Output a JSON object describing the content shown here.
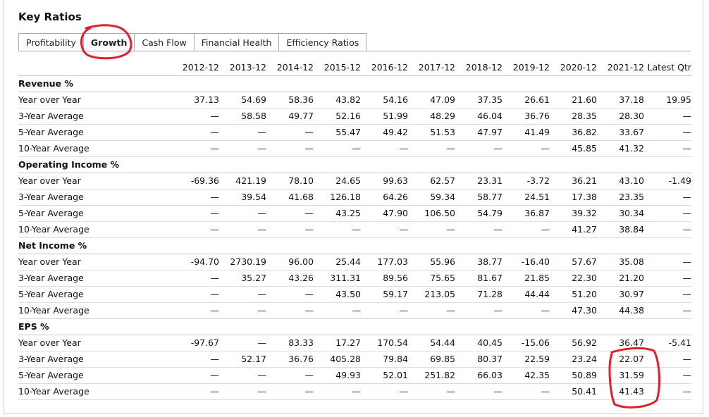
{
  "title": "Key Ratios",
  "tabs": [
    {
      "label": "Profitability",
      "active": false
    },
    {
      "label": "Growth",
      "active": true
    },
    {
      "label": "Cash Flow",
      "active": false
    },
    {
      "label": "Financial Health",
      "active": false
    },
    {
      "label": "Efficiency Ratios",
      "active": false
    }
  ],
  "columns": [
    "2012-12",
    "2013-12",
    "2014-12",
    "2015-12",
    "2016-12",
    "2017-12",
    "2018-12",
    "2019-12",
    "2020-12",
    "2021-12",
    "Latest Qtr"
  ],
  "sections": [
    {
      "name": "Revenue %",
      "rows": [
        {
          "label": "Year over Year",
          "values": [
            "37.13",
            "54.69",
            "58.36",
            "43.82",
            "54.16",
            "47.09",
            "37.35",
            "26.61",
            "21.60",
            "37.18",
            "19.95"
          ]
        },
        {
          "label": "3-Year Average",
          "values": [
            "—",
            "58.58",
            "49.77",
            "52.16",
            "51.99",
            "48.29",
            "46.04",
            "36.76",
            "28.35",
            "28.30",
            "—"
          ]
        },
        {
          "label": "5-Year Average",
          "values": [
            "—",
            "—",
            "—",
            "55.47",
            "49.42",
            "51.53",
            "47.97",
            "41.49",
            "36.82",
            "33.67",
            "—"
          ]
        },
        {
          "label": "10-Year Average",
          "values": [
            "—",
            "—",
            "—",
            "—",
            "—",
            "—",
            "—",
            "—",
            "45.85",
            "41.32",
            "—"
          ]
        }
      ]
    },
    {
      "name": "Operating Income %",
      "rows": [
        {
          "label": "Year over Year",
          "values": [
            "-69.36",
            "421.19",
            "78.10",
            "24.65",
            "99.63",
            "62.57",
            "23.31",
            "-3.72",
            "36.21",
            "43.10",
            "-1.49"
          ]
        },
        {
          "label": "3-Year Average",
          "values": [
            "—",
            "39.54",
            "41.68",
            "126.18",
            "64.26",
            "59.34",
            "58.77",
            "24.51",
            "17.38",
            "23.35",
            "—"
          ]
        },
        {
          "label": "5-Year Average",
          "values": [
            "—",
            "—",
            "—",
            "43.25",
            "47.90",
            "106.50",
            "54.79",
            "36.87",
            "39.32",
            "30.34",
            "—"
          ]
        },
        {
          "label": "10-Year Average",
          "values": [
            "—",
            "—",
            "—",
            "—",
            "—",
            "—",
            "—",
            "—",
            "41.27",
            "38.84",
            "—"
          ]
        }
      ]
    },
    {
      "name": "Net Income %",
      "rows": [
        {
          "label": "Year over Year",
          "values": [
            "-94.70",
            "2730.19",
            "96.00",
            "25.44",
            "177.03",
            "55.96",
            "38.77",
            "-16.40",
            "57.67",
            "35.08",
            "—"
          ]
        },
        {
          "label": "3-Year Average",
          "values": [
            "—",
            "35.27",
            "43.26",
            "311.31",
            "89.56",
            "75.65",
            "81.67",
            "21.85",
            "22.30",
            "21.20",
            "—"
          ]
        },
        {
          "label": "5-Year Average",
          "values": [
            "—",
            "—",
            "—",
            "43.50",
            "59.17",
            "213.05",
            "71.28",
            "44.44",
            "51.20",
            "30.97",
            "—"
          ]
        },
        {
          "label": "10-Year Average",
          "values": [
            "—",
            "—",
            "—",
            "—",
            "—",
            "—",
            "—",
            "—",
            "47.30",
            "44.38",
            "—"
          ]
        }
      ]
    },
    {
      "name": "EPS %",
      "rows": [
        {
          "label": "Year over Year",
          "values": [
            "-97.67",
            "—",
            "83.33",
            "17.27",
            "170.54",
            "54.44",
            "40.45",
            "-15.06",
            "56.92",
            "36.47",
            "-5.41"
          ]
        },
        {
          "label": "3-Year Average",
          "values": [
            "—",
            "52.17",
            "36.76",
            "405.28",
            "79.84",
            "69.85",
            "80.37",
            "22.59",
            "23.24",
            "22.07",
            "—"
          ]
        },
        {
          "label": "5-Year Average",
          "values": [
            "—",
            "—",
            "—",
            "49.93",
            "52.01",
            "251.82",
            "66.03",
            "42.35",
            "50.89",
            "31.59",
            "—"
          ]
        },
        {
          "label": "10-Year Average",
          "values": [
            "—",
            "—",
            "—",
            "—",
            "—",
            "—",
            "—",
            "—",
            "50.41",
            "41.43",
            "—"
          ]
        }
      ]
    }
  ],
  "colors": {
    "annotation": "#e0202a",
    "border": "#aaaaaa",
    "rowline": "#dcdcdc"
  }
}
